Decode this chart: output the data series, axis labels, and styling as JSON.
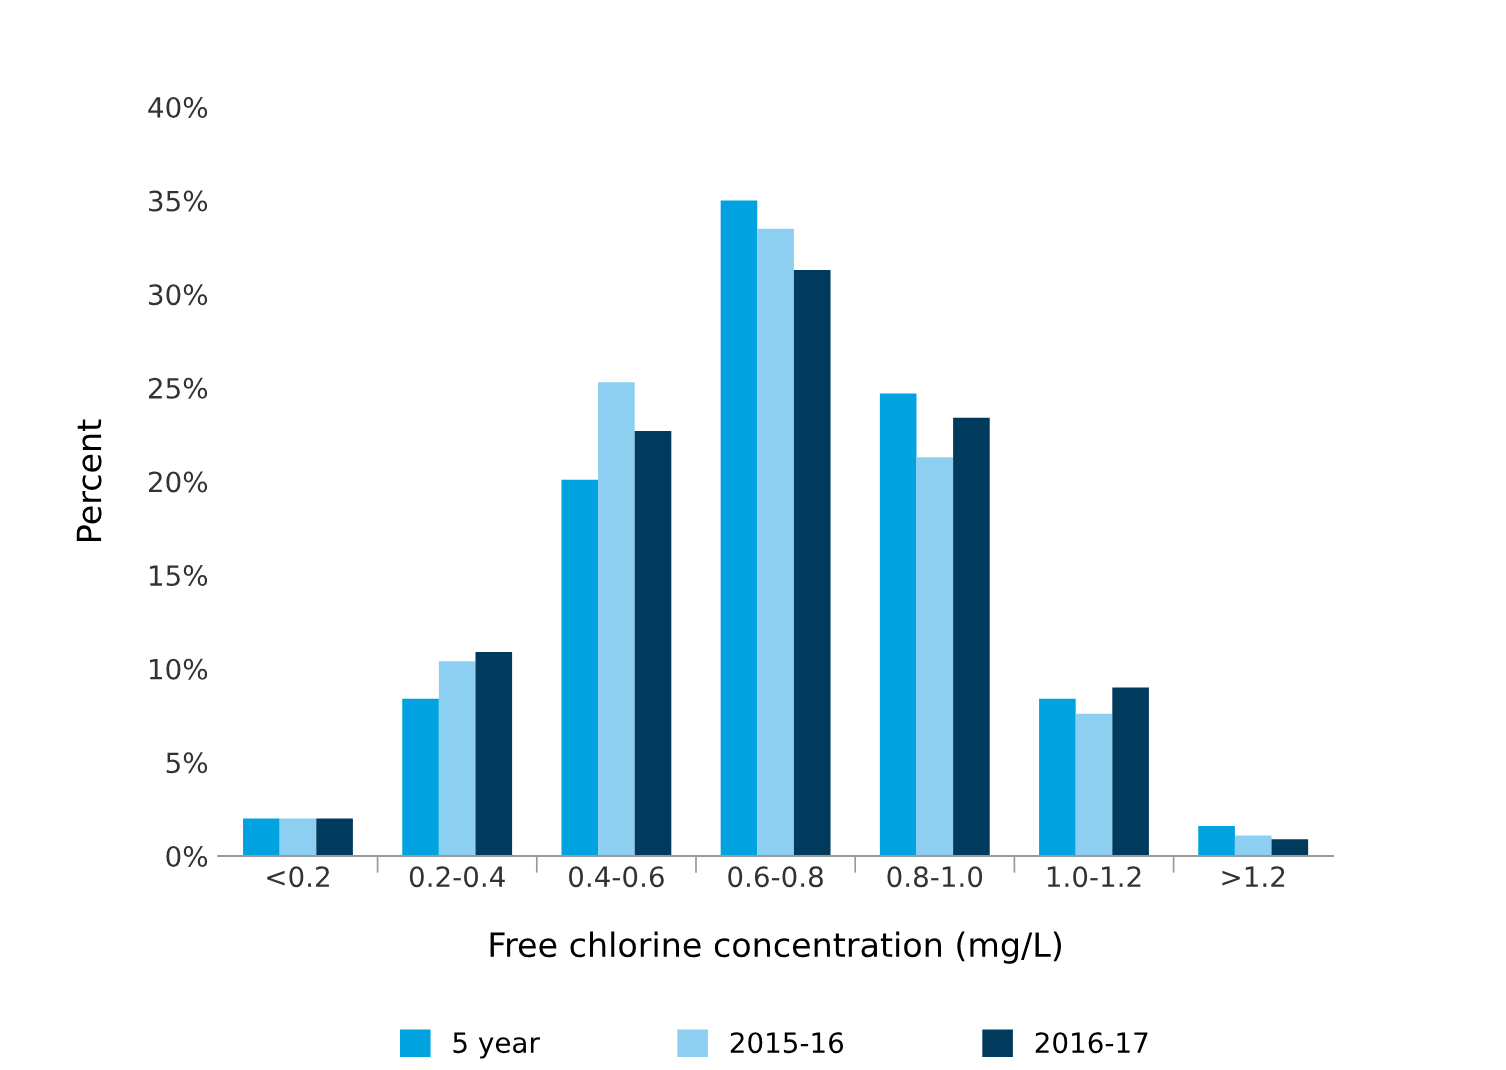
{
  "chart_data": {
    "type": "bar",
    "xlabel": "Free chlorine concentration (mg/L)",
    "ylabel": "Percent",
    "categories": [
      "<0.2",
      "0.2-0.4",
      "0.4-0.6",
      "0.6-0.8",
      "0.8-1.0",
      "1.0-1.2",
      ">1.2"
    ],
    "series": [
      {
        "name": "5 year",
        "color": "#00a3e0",
        "values": [
          2.0,
          8.4,
          20.1,
          35.0,
          24.7,
          8.4,
          1.6
        ]
      },
      {
        "name": "2015-16",
        "color": "#8dcff0",
        "values": [
          2.0,
          10.4,
          25.3,
          33.5,
          21.3,
          7.6,
          1.1
        ]
      },
      {
        "name": "2016-17",
        "color": "#003a5d",
        "values": [
          2.0,
          10.9,
          22.7,
          31.3,
          23.4,
          9.0,
          0.9
        ]
      }
    ],
    "ylim": [
      0,
      40
    ],
    "yticks": [
      {
        "value": 0,
        "label": "0%"
      },
      {
        "value": 5,
        "label": "5%"
      },
      {
        "value": 10,
        "label": "10%"
      },
      {
        "value": 15,
        "label": "15%"
      },
      {
        "value": 20,
        "label": "20%"
      },
      {
        "value": 25,
        "label": "25%"
      },
      {
        "value": 30,
        "label": "30%"
      },
      {
        "value": 35,
        "label": "35%"
      },
      {
        "value": 40,
        "label": "40%"
      }
    ],
    "grid": false,
    "legend": "bottom"
  }
}
